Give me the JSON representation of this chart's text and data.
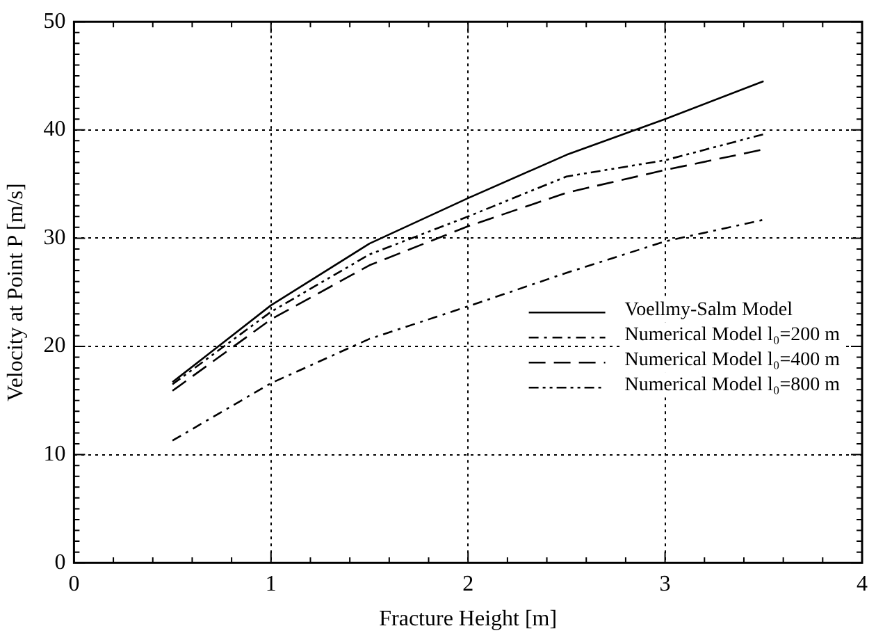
{
  "chart_data": {
    "type": "line",
    "xlabel": "Fracture Height [m]",
    "ylabel": "Velocity at Point P [m/s]",
    "x": [
      0.5,
      1,
      1.5,
      2,
      2.5,
      3,
      3.5
    ],
    "series": [
      {
        "name": "Voellmy-Salm Model",
        "color": "#000000",
        "line_style": "solid",
        "values": [
          16.7,
          23.8,
          29.5,
          33.7,
          37.7,
          41,
          44.5
        ]
      },
      {
        "name": "Numerical Model l₀=200 m",
        "color": "#000000",
        "line_style": "dashdot",
        "values": [
          11.3,
          16.6,
          20.7,
          23.7,
          26.8,
          29.7,
          31.7
        ]
      },
      {
        "name": "Numerical Model l₀=400 m",
        "color": "#000000",
        "line_style": "dashed",
        "values": [
          15.9,
          22.5,
          27.5,
          31.1,
          34.2,
          36.3,
          38.2
        ]
      },
      {
        "name": "Numerical Model l₀=800 m",
        "color": "#000000",
        "line_style": "dashdotdot",
        "values": [
          16.5,
          23.2,
          28.5,
          32,
          35.7,
          37.2,
          39.6
        ]
      }
    ],
    "xlim": [
      0,
      4
    ],
    "xticks": [
      0,
      1,
      2,
      3,
      4
    ],
    "ylim": [
      0,
      50
    ],
    "yticks": [
      0,
      10,
      20,
      30,
      40,
      50
    ],
    "grid": true,
    "legend": "bottom right",
    "marker": "none"
  }
}
